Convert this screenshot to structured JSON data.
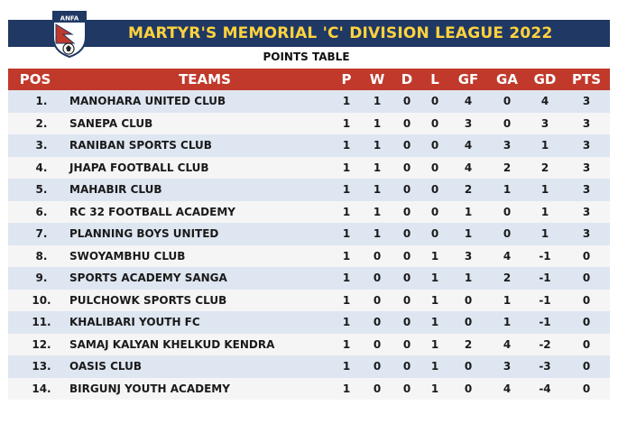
{
  "header": {
    "title": "MARTYR'S MEMORIAL 'C' DIVISION LEAGUE 2022",
    "subtitle": "POINTS TABLE",
    "logo_text": "ANFA",
    "colors": {
      "banner": "#1f3864",
      "title": "#ffd33d",
      "header_row": "#c0392b"
    }
  },
  "table": {
    "columns": [
      "POS",
      "TEAMS",
      "P",
      "W",
      "D",
      "L",
      "GF",
      "GA",
      "GD",
      "PTS"
    ],
    "rows": [
      {
        "pos": "1.",
        "team": "MANOHARA UNITED CLUB",
        "p": "1",
        "w": "1",
        "d": "0",
        "l": "0",
        "gf": "4",
        "ga": "0",
        "gd": "4",
        "pts": "3"
      },
      {
        "pos": "2.",
        "team": "SANEPA CLUB",
        "p": "1",
        "w": "1",
        "d": "0",
        "l": "0",
        "gf": "3",
        "ga": "0",
        "gd": "3",
        "pts": "3"
      },
      {
        "pos": "3.",
        "team": "RANIBAN SPORTS CLUB",
        "p": "1",
        "w": "1",
        "d": "0",
        "l": "0",
        "gf": "4",
        "ga": "3",
        "gd": "1",
        "pts": "3"
      },
      {
        "pos": "4.",
        "team": "JHAPA FOOTBALL CLUB",
        "p": "1",
        "w": "1",
        "d": "0",
        "l": "0",
        "gf": "4",
        "ga": "2",
        "gd": "2",
        "pts": "3"
      },
      {
        "pos": "5.",
        "team": "MAHABIR CLUB",
        "p": "1",
        "w": "1",
        "d": "0",
        "l": "0",
        "gf": "2",
        "ga": "1",
        "gd": "1",
        "pts": "3"
      },
      {
        "pos": "6.",
        "team": "RC 32 FOOTBALL ACADEMY",
        "p": "1",
        "w": "1",
        "d": "0",
        "l": "0",
        "gf": "1",
        "ga": "0",
        "gd": "1",
        "pts": "3"
      },
      {
        "pos": "7.",
        "team": "PLANNING BOYS UNITED",
        "p": "1",
        "w": "1",
        "d": "0",
        "l": "0",
        "gf": "1",
        "ga": "0",
        "gd": "1",
        "pts": "3"
      },
      {
        "pos": "8.",
        "team": "SWOYAMBHU CLUB",
        "p": "1",
        "w": "0",
        "d": "0",
        "l": "1",
        "gf": "3",
        "ga": "4",
        "gd": "-1",
        "pts": "0"
      },
      {
        "pos": "9.",
        "team": "SPORTS ACADEMY SANGA",
        "p": "1",
        "w": "0",
        "d": "0",
        "l": "1",
        "gf": "1",
        "ga": "2",
        "gd": "-1",
        "pts": "0"
      },
      {
        "pos": "10.",
        "team": "PULCHOWK SPORTS CLUB",
        "p": "1",
        "w": "0",
        "d": "0",
        "l": "1",
        "gf": "0",
        "ga": "1",
        "gd": "-1",
        "pts": "0"
      },
      {
        "pos": "11.",
        "team": "KHALIBARI YOUTH FC",
        "p": "1",
        "w": "0",
        "d": "0",
        "l": "1",
        "gf": "0",
        "ga": "1",
        "gd": "-1",
        "pts": "0"
      },
      {
        "pos": "12.",
        "team": "SAMAJ KALYAN KHELKUD KENDRA",
        "p": "1",
        "w": "0",
        "d": "0",
        "l": "1",
        "gf": "2",
        "ga": "4",
        "gd": "-2",
        "pts": "0"
      },
      {
        "pos": "13.",
        "team": "OASIS CLUB",
        "p": "1",
        "w": "0",
        "d": "0",
        "l": "1",
        "gf": "0",
        "ga": "3",
        "gd": "-3",
        "pts": "0"
      },
      {
        "pos": "14.",
        "team": "BIRGUNJ YOUTH ACADEMY",
        "p": "1",
        "w": "0",
        "d": "0",
        "l": "1",
        "gf": "0",
        "ga": "4",
        "gd": "-4",
        "pts": "0"
      }
    ]
  }
}
